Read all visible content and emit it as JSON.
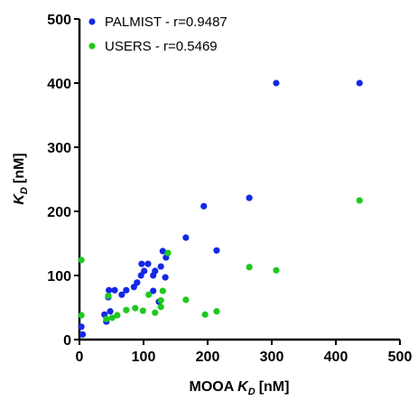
{
  "chart_data": {
    "type": "scatter",
    "xlabel": {
      "prefix": "MOOA",
      "symbol": "K",
      "subscript": "D",
      "unit": "[nM]"
    },
    "ylabel": {
      "symbol": "K",
      "subscript": "D",
      "unit": "[nM]"
    },
    "xlim": [
      0,
      500
    ],
    "ylim": [
      0,
      500
    ],
    "xticks": [
      0,
      100,
      200,
      300,
      400,
      500
    ],
    "yticks": [
      0,
      100,
      200,
      300,
      400,
      500
    ],
    "legend": "upper-left",
    "series": [
      {
        "name": "PALMIST - r=0.9487",
        "color": "#1428e6",
        "x": [
          3,
          5,
          307,
          437,
          265,
          194,
          166,
          214,
          130,
          135,
          127,
          134,
          115,
          124,
          97,
          107,
          101,
          96,
          90,
          85,
          73,
          66,
          55,
          46,
          45,
          39,
          42,
          48,
          115,
          118
        ],
        "y": [
          20,
          8,
          400,
          400,
          221,
          208,
          159,
          139,
          138,
          128,
          114,
          97,
          76,
          59,
          118,
          118,
          107,
          100,
          89,
          82,
          77,
          70,
          77,
          77,
          66,
          39,
          28,
          44,
          100,
          107
        ]
      },
      {
        "name": "USERS - r=0.5469",
        "color": "#1ec81e",
        "x": [
          3,
          3,
          138,
          42,
          51,
          59,
          73,
          87,
          99,
          108,
          127,
          130,
          127,
          118,
          166,
          196,
          214,
          265,
          307,
          437,
          45
        ],
        "y": [
          124,
          38,
          135,
          32,
          34,
          38,
          46,
          49,
          45,
          70,
          61,
          76,
          51,
          42,
          62,
          39,
          44,
          113,
          108,
          217,
          68
        ]
      }
    ]
  }
}
